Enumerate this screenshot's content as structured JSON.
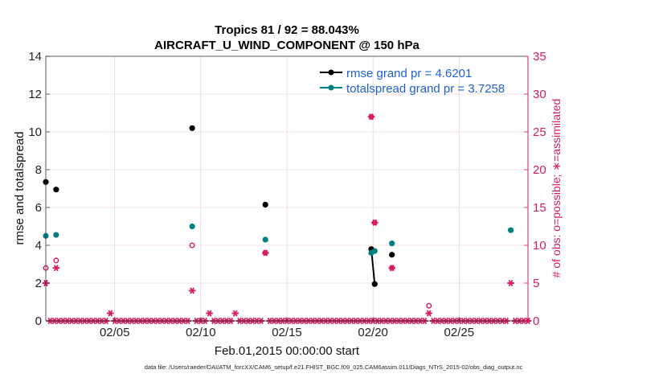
{
  "chart_data": {
    "type": "scatter",
    "title": "Tropics 81 / 92 = 88.043%",
    "subtitle": "AIRCRAFT_U_WIND_COMPONENT @ 150 hPa",
    "xlabel": "Feb.01,2015 00:00:00 start",
    "ylabel": "rmse and totalspread",
    "ylabel_right": "# of obs: o=possible; ∗=assimilated",
    "footnote": "data file: /Users/raeder/DAI/ATM_forcXX/CAM6_setup/f.e21.FHIST_BGC.f09_025.CAM6assim.011/Diags_NTrS_2015-02/obs_diag_output.nc",
    "xlim": [
      1,
      29
    ],
    "ylim": [
      0,
      14
    ],
    "ylim_right": [
      0,
      35
    ],
    "x_ticks": [
      5,
      10,
      15,
      20,
      25
    ],
    "x_tick_labels": [
      "02/05",
      "02/10",
      "02/15",
      "02/20",
      "02/25"
    ],
    "y_ticks": [
      0,
      2,
      4,
      6,
      8,
      10,
      12,
      14
    ],
    "y_tick_labels": [
      "0",
      "2",
      "4",
      "6",
      "8",
      "10",
      "12",
      "14"
    ],
    "y_right_ticks": [
      0,
      5,
      10,
      15,
      20,
      25,
      30,
      35
    ],
    "y_right_tick_labels": [
      "0",
      "5",
      "10",
      "15",
      "20",
      "25",
      "30",
      "35"
    ],
    "grid": true,
    "legend_position": "top-right",
    "colors": {
      "rmse": "#000000",
      "spread": "#008080",
      "obs": "#d81b60",
      "legend_text": "#1f5fd1"
    },
    "series": [
      {
        "name": "rmse grand pr = 4.6201",
        "x": [
          1.0,
          1.6,
          9.5,
          13.75,
          19.9,
          20.1,
          21.1
        ],
        "y": [
          7.35,
          6.95,
          10.2,
          6.15,
          3.8,
          1.95,
          3.5
        ],
        "lines": [
          [
            19.9,
            3.8,
            20.1,
            1.95
          ]
        ]
      },
      {
        "name": "totalspread grand pr = 3.7258",
        "x": [
          1.0,
          1.6,
          9.5,
          13.75,
          19.9,
          20.1,
          21.1,
          28.0
        ],
        "y": [
          4.5,
          4.55,
          5.0,
          4.3,
          3.6,
          3.7,
          4.1,
          4.8
        ],
        "lines": [
          [
            19.9,
            3.6,
            20.1,
            3.7
          ]
        ]
      }
    ],
    "obs_possible": {
      "x": [
        1.0,
        1.6,
        9.5,
        13.75,
        19.9,
        20.1,
        21.1,
        23.25
      ],
      "y": [
        7,
        8,
        10,
        9,
        27,
        13,
        7,
        2
      ]
    },
    "obs_assimilated": {
      "x": [
        1.0,
        1.6,
        4.75,
        9.5,
        10.5,
        12.0,
        13.75,
        19.9,
        20.1,
        21.1,
        23.25,
        28.0
      ],
      "y": [
        5,
        7,
        1,
        4,
        1,
        1,
        9,
        27,
        13,
        7,
        1,
        5
      ]
    },
    "zero_obs_start": 1.25,
    "zero_obs_end": 29.0,
    "zero_obs_step": 0.25
  }
}
